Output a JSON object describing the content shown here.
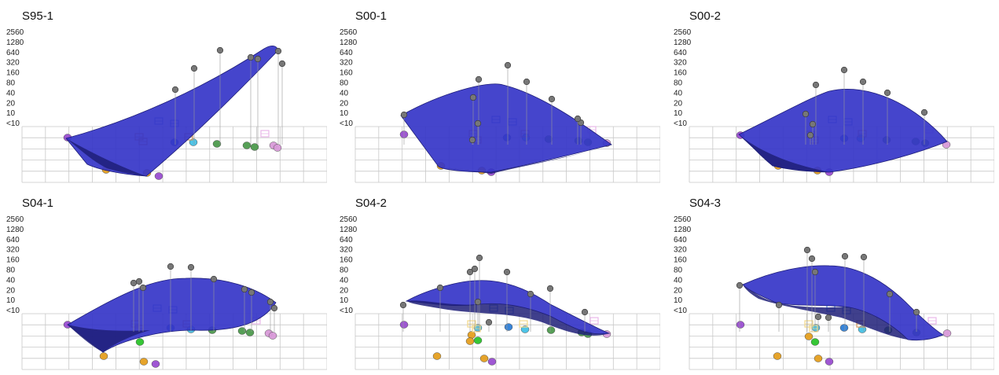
{
  "figure": {
    "name": "3D antigenic landscape panels"
  },
  "chart_data": [
    {
      "type": "surface",
      "title": "S95-1",
      "z_ticks": [
        "2560",
        "1280",
        "640",
        "320",
        "160",
        "80",
        "40",
        "20",
        "10",
        "<10"
      ],
      "colors": {
        "surface": "#3535c8",
        "surface_edge": "#1e1e78",
        "grid": "#c8c8c8",
        "titer_point": "#777777"
      }
    },
    {
      "type": "surface",
      "title": "S00-1",
      "z_ticks": [
        "2560",
        "1280",
        "640",
        "320",
        "160",
        "80",
        "40",
        "20",
        "10",
        "<10"
      ],
      "colors": {
        "surface": "#3535c8",
        "surface_edge": "#1e1e78",
        "grid": "#c8c8c8",
        "titer_point": "#777777"
      }
    },
    {
      "type": "surface",
      "title": "S00-2",
      "z_ticks": [
        "2560",
        "1280",
        "640",
        "320",
        "160",
        "80",
        "40",
        "20",
        "10",
        "<10"
      ],
      "colors": {
        "surface": "#3535c8",
        "surface_edge": "#1e1e78",
        "grid": "#c8c8c8",
        "titer_point": "#777777"
      }
    },
    {
      "type": "surface",
      "title": "S04-1",
      "z_ticks": [
        "2560",
        "1280",
        "640",
        "320",
        "160",
        "80",
        "40",
        "20",
        "10",
        "<10"
      ],
      "colors": {
        "surface": "#3535c8",
        "surface_edge": "#1e1e78",
        "grid": "#c8c8c8",
        "titer_point": "#777777"
      }
    },
    {
      "type": "surface",
      "title": "S04-2",
      "z_ticks": [
        "2560",
        "1280",
        "640",
        "320",
        "160",
        "80",
        "40",
        "20",
        "10",
        "<10"
      ],
      "colors": {
        "surface": "#3535c8",
        "surface_edge": "#1e1e78",
        "grid": "#c8c8c8",
        "titer_point": "#777777"
      }
    },
    {
      "type": "surface",
      "title": "S04-3",
      "z_ticks": [
        "2560",
        "1280",
        "640",
        "320",
        "160",
        "80",
        "40",
        "20",
        "10",
        "<10"
      ],
      "colors": {
        "surface": "#3535c8",
        "surface_edge": "#1e1e78",
        "grid": "#c8c8c8",
        "titer_point": "#777777"
      }
    }
  ]
}
